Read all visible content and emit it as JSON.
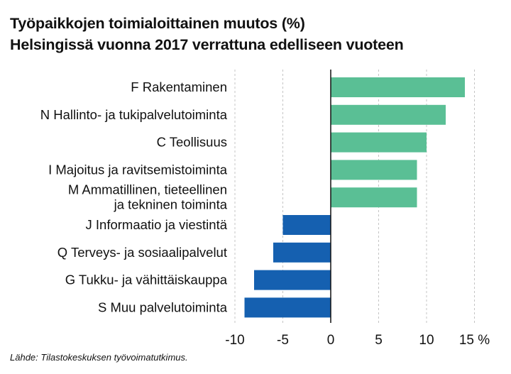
{
  "chart_data": {
    "type": "bar",
    "orientation": "horizontal",
    "title": "Työpaikkojen toimialoittainen muutos (%)",
    "subtitle": "Helsingissä vuonna 2017 verrattuna edelliseen vuoteen",
    "categories": [
      [
        "F Rakentaminen"
      ],
      [
        "N Hallinto- ja tukipalvelutoiminta"
      ],
      [
        "C Teollisuus"
      ],
      [
        "I Majoitus ja ravitsemistoiminta"
      ],
      [
        "M Ammatillinen, tieteellinen",
        "ja tekninen toiminta"
      ],
      [
        "J Informaatio ja viestintä"
      ],
      [
        "Q Terveys- ja sosiaalipalvelut"
      ],
      [
        "G Tukku- ja vähittäiskauppa"
      ],
      [
        "S Muu palvelutoiminta"
      ]
    ],
    "values": [
      14,
      12,
      10,
      9,
      9,
      -5,
      -6,
      -8,
      -9
    ],
    "xlim": [
      -10,
      15
    ],
    "xticks": [
      -10,
      -5,
      0,
      5,
      10,
      15
    ],
    "xtick_labels": [
      "-10",
      "-5",
      "0",
      "5",
      "10",
      "15 %"
    ],
    "grid": "vertical dashed",
    "colors": {
      "positive": "#5abf95",
      "negative": "#1560b0",
      "grid": "#c4c4c4",
      "zero_line": "#111111"
    }
  },
  "source": "Lähde: Tilastokeskuksen työvoimatutkimus."
}
